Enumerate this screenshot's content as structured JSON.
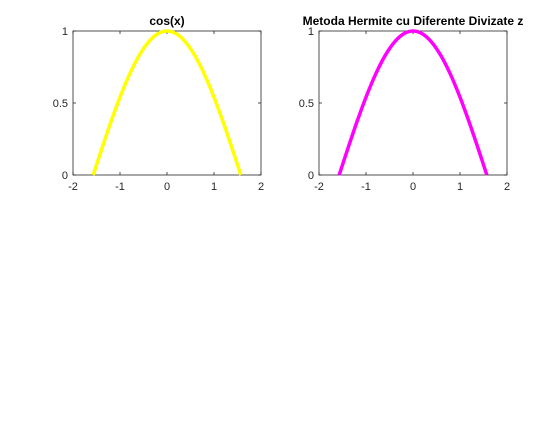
{
  "chart_data": [
    {
      "type": "line",
      "title": "cos(x)",
      "xlabel": "",
      "ylabel": "",
      "xlim": [
        -2,
        2
      ],
      "ylim": [
        0,
        1
      ],
      "xticks": [
        "-2",
        "-1",
        "0",
        "1",
        "2"
      ],
      "yticks": [
        "0",
        "0.5",
        "1"
      ],
      "grid": false,
      "legend": "none",
      "series": [
        {
          "color": "#ffff00",
          "x": [
            -1.5708,
            -1.3744,
            -1.1781,
            -0.9817,
            -0.7854,
            -0.589,
            -0.3927,
            -0.1963,
            0,
            0.1963,
            0.3927,
            0.589,
            0.7854,
            0.9817,
            1.1781,
            1.3744,
            1.5708
          ],
          "y": [
            0,
            0.1951,
            0.3827,
            0.5556,
            0.7071,
            0.8315,
            0.9239,
            0.9808,
            1,
            0.9808,
            0.9239,
            0.8315,
            0.7071,
            0.5556,
            0.3827,
            0.1951,
            0
          ]
        }
      ]
    },
    {
      "type": "line",
      "title": "Metoda Hermite cu Diferente Divizate z",
      "xlabel": "",
      "ylabel": "",
      "xlim": [
        -2,
        2
      ],
      "ylim": [
        0,
        1
      ],
      "xticks": [
        "-2",
        "-1",
        "0",
        "1",
        "2"
      ],
      "yticks": [
        "0",
        "0.5",
        "1"
      ],
      "grid": false,
      "legend": "none",
      "series": [
        {
          "color": "#ff00ff",
          "x": [
            -1.5708,
            -1.3744,
            -1.1781,
            -0.9817,
            -0.7854,
            -0.589,
            -0.3927,
            -0.1963,
            0,
            0.1963,
            0.3927,
            0.589,
            0.7854,
            0.9817,
            1.1781,
            1.3744,
            1.5708
          ],
          "y": [
            0,
            0.1951,
            0.3827,
            0.5556,
            0.7071,
            0.8315,
            0.9239,
            0.9808,
            1,
            0.9808,
            0.9239,
            0.8315,
            0.7071,
            0.5556,
            0.3827,
            0.1951,
            0
          ]
        }
      ]
    }
  ]
}
